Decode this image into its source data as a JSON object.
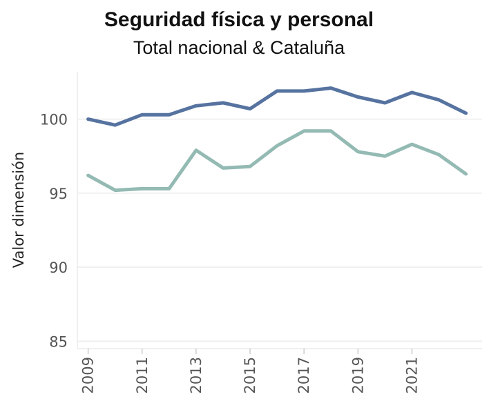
{
  "chart_data": {
    "type": "line",
    "title": "Seguridad física y personal",
    "subtitle": "Total nacional & Cataluña",
    "xlabel": "",
    "ylabel": "Valor dimensión",
    "x": [
      2009,
      2010,
      2011,
      2012,
      2013,
      2014,
      2015,
      2016,
      2017,
      2018,
      2019,
      2020,
      2021,
      2022,
      2023
    ],
    "x_tick_labels": [
      "2009",
      "2011",
      "2013",
      "2015",
      "2017",
      "2019",
      "2021"
    ],
    "x_tick_values": [
      2009,
      2011,
      2013,
      2015,
      2017,
      2019,
      2021
    ],
    "y_ticks": [
      85,
      90,
      95,
      100
    ],
    "y_tick_labels": [
      "85",
      "90",
      "95",
      "100"
    ],
    "ylim": [
      84.5,
      103.2
    ],
    "xlim": [
      2008.6,
      2023.6
    ],
    "grid": true,
    "series": [
      {
        "name": "Total nacional",
        "color": "#5673a0",
        "values": [
          100.0,
          99.6,
          100.3,
          100.3,
          100.9,
          101.1,
          100.7,
          101.9,
          101.9,
          102.1,
          101.5,
          101.1,
          101.8,
          101.3,
          100.4
        ]
      },
      {
        "name": "Cataluña",
        "color": "#93bab3",
        "values": [
          96.2,
          95.2,
          95.3,
          95.3,
          97.9,
          96.7,
          96.8,
          98.2,
          99.2,
          99.2,
          97.8,
          97.5,
          98.3,
          97.6,
          96.3
        ]
      }
    ]
  }
}
